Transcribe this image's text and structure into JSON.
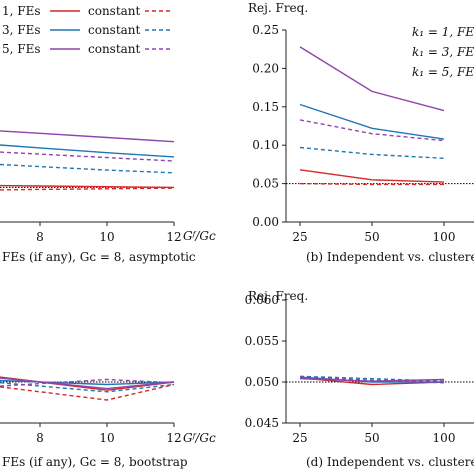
{
  "colors": {
    "red": "#d62828",
    "blue": "#1f77b4",
    "purple": "#8e44ad"
  },
  "legend": [
    {
      "prefix": "3, FEs",
      "series": "blue",
      "constant_label": "constant"
    },
    {
      "prefix": "5, FEs",
      "series": "purple",
      "constant_label": "constant"
    }
  ],
  "legend_top": {
    "prefix": "1, FEs",
    "constant_label": "constant"
  },
  "legend_b": [
    "k₁ = 1, FE",
    "k₁ = 3, FE",
    "k₁ = 5, FE"
  ],
  "chart_data": [
    {
      "panel": "a",
      "type": "line",
      "caption": "FEs (if any), Gᴄ = 8, asymptotic",
      "xlabel": "Gᶠ/Gᴄ",
      "x": [
        8,
        10,
        12
      ],
      "ylim": [
        0,
        0.25
      ],
      "series": [
        {
          "color": "red",
          "style": "solid",
          "values": [
            0.052,
            0.051,
            0.05
          ]
        },
        {
          "color": "red",
          "style": "dashed",
          "values": [
            0.047,
            0.048,
            0.049
          ]
        },
        {
          "color": "blue",
          "style": "solid",
          "values": [
            0.107,
            0.1,
            0.094
          ]
        },
        {
          "color": "blue",
          "style": "dashed",
          "values": [
            0.08,
            0.075,
            0.071
          ]
        },
        {
          "color": "purple",
          "style": "solid",
          "values": [
            0.128,
            0.122,
            0.116
          ]
        },
        {
          "color": "purple",
          "style": "dashed",
          "values": [
            0.098,
            0.093,
            0.088
          ]
        }
      ],
      "ref": 0.05
    },
    {
      "panel": "b",
      "type": "line",
      "caption": "(b) Independent vs. clustered",
      "ylabel": "Rej. Freq.",
      "x": [
        25,
        50,
        100
      ],
      "yticks": [
        "0.00",
        "0.05",
        "0.10",
        "0.15",
        "0.20",
        "0.25"
      ],
      "ylim": [
        0,
        0.25
      ],
      "series": [
        {
          "color": "red",
          "style": "solid",
          "values": [
            0.068,
            0.055,
            0.052
          ]
        },
        {
          "color": "red",
          "style": "dashed",
          "values": [
            0.05,
            0.049,
            0.049
          ]
        },
        {
          "color": "blue",
          "style": "solid",
          "values": [
            0.153,
            0.122,
            0.108
          ]
        },
        {
          "color": "blue",
          "style": "dashed",
          "values": [
            0.097,
            0.088,
            0.083
          ]
        },
        {
          "color": "purple",
          "style": "solid",
          "values": [
            0.228,
            0.17,
            0.145
          ]
        },
        {
          "color": "purple",
          "style": "dashed",
          "values": [
            0.133,
            0.115,
            0.106
          ]
        }
      ],
      "ref": 0.05
    },
    {
      "panel": "c",
      "type": "line",
      "caption": "FEs (if any), Gᴄ = 8, bootstrap",
      "xlabel": "Gᶠ/Gᴄ",
      "x": [
        8,
        10,
        12
      ],
      "ylim": [
        0.045,
        0.06
      ],
      "series": [
        {
          "color": "red",
          "style": "solid",
          "values": [
            0.05,
            0.049,
            0.05
          ]
        },
        {
          "color": "red",
          "style": "dashed",
          "values": [
            0.0488,
            0.0478,
            0.0497
          ]
        },
        {
          "color": "blue",
          "style": "solid",
          "values": [
            0.05,
            0.0497,
            0.05
          ]
        },
        {
          "color": "blue",
          "style": "dashed",
          "values": [
            0.0495,
            0.0488,
            0.0497
          ]
        },
        {
          "color": "purple",
          "style": "solid",
          "values": [
            0.05,
            0.0492,
            0.05
          ]
        },
        {
          "color": "purple",
          "style": "dashed",
          "values": [
            0.0498,
            0.0503,
            0.0499
          ]
        }
      ],
      "ref": 0.05
    },
    {
      "panel": "d",
      "type": "line",
      "caption": "(d) Independent vs. clustered",
      "ylabel": "Rej. Freq.",
      "x": [
        25,
        50,
        100
      ],
      "yticks": [
        "0.045",
        "0.050",
        "0.055",
        "0.060"
      ],
      "ylim": [
        0.045,
        0.06
      ],
      "series": [
        {
          "color": "red",
          "style": "solid",
          "values": [
            0.0505,
            0.0497,
            0.05
          ]
        },
        {
          "color": "red",
          "style": "dashed",
          "values": [
            0.0506,
            0.0502,
            0.05
          ]
        },
        {
          "color": "blue",
          "style": "solid",
          "values": [
            0.0506,
            0.05,
            0.05
          ]
        },
        {
          "color": "blue",
          "style": "dashed",
          "values": [
            0.0507,
            0.0504,
            0.0501
          ]
        },
        {
          "color": "purple",
          "style": "solid",
          "values": [
            0.0504,
            0.0501,
            0.0503
          ]
        },
        {
          "color": "purple",
          "style": "dashed",
          "values": [
            0.0506,
            0.0502,
            0.0499
          ]
        }
      ],
      "ref": 0.05
    }
  ]
}
